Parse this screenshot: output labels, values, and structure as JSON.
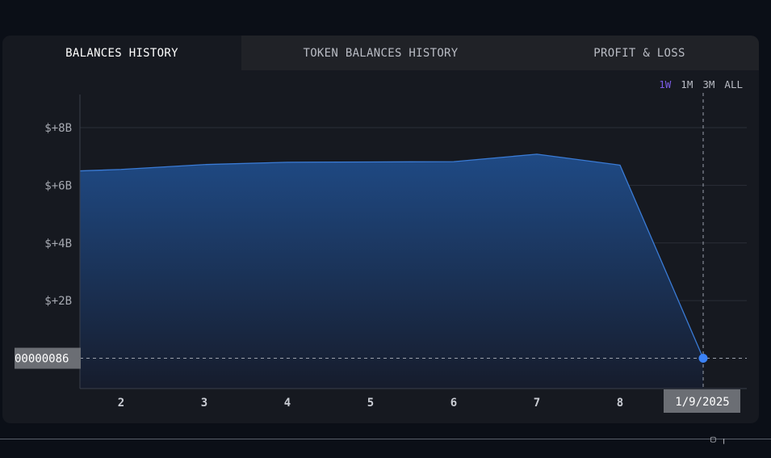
{
  "tabs": [
    {
      "label": "BALANCES HISTORY",
      "active": true
    },
    {
      "label": "TOKEN BALANCES HISTORY",
      "active": false
    },
    {
      "label": "PROFIT & LOSS",
      "active": false
    }
  ],
  "ranges": [
    {
      "label": "1W",
      "active": true
    },
    {
      "label": "1M",
      "active": false
    },
    {
      "label": "3M",
      "active": false
    },
    {
      "label": "ALL",
      "active": false
    }
  ],
  "colors": {
    "accent": "#7b5ce6",
    "line": "#3a7bd5",
    "area_top": "#1f4a85",
    "area_bottom": "#161c2c",
    "point": "#3b82f6"
  },
  "crosshair": {
    "y_label": "00000086",
    "x_label": "1/9/2025"
  },
  "chart_data": {
    "type": "area",
    "x": [
      1.5,
      2,
      3,
      4,
      5,
      6,
      7,
      8,
      9
    ],
    "values": [
      6.5,
      6.55,
      6.72,
      6.8,
      6.81,
      6.82,
      7.08,
      6.7,
      8.6e-09
    ],
    "xticks": [
      "2",
      "3",
      "4",
      "5",
      "6",
      "7",
      "8"
    ],
    "yticks": [
      "$+2B",
      "$+4B",
      "$+6B",
      "$+8B"
    ],
    "ytick_values": [
      2,
      4,
      6,
      8
    ],
    "xlim": [
      1.5,
      9.5
    ],
    "ylim": [
      -1.05,
      9.15
    ],
    "grid": true,
    "highlight_index": 8
  }
}
